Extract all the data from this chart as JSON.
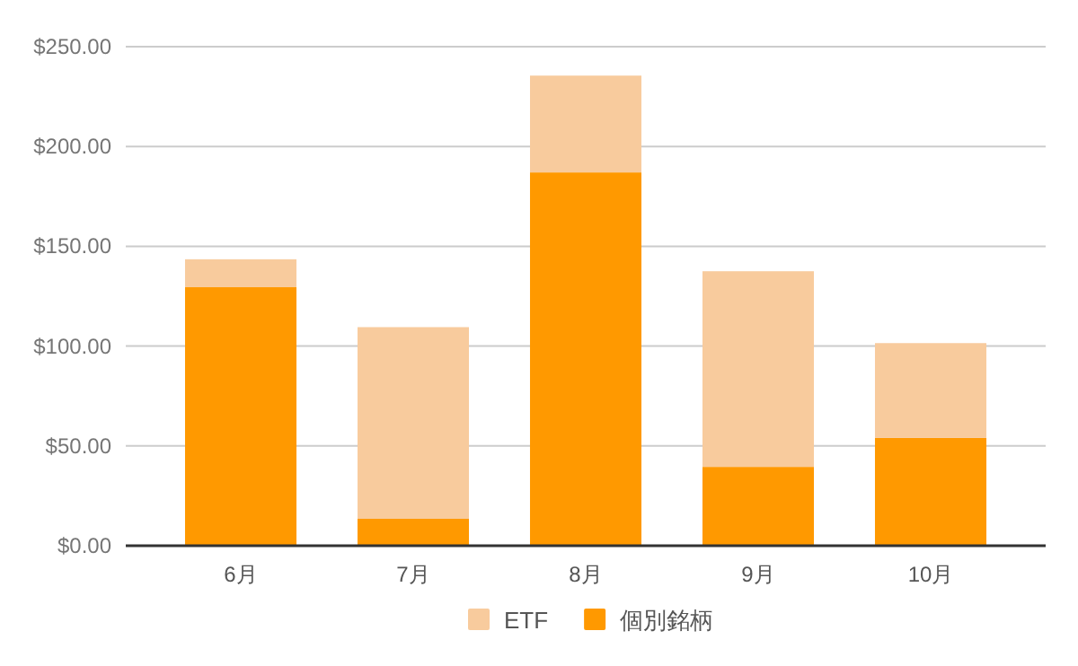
{
  "chart_data": {
    "type": "bar",
    "stacked": true,
    "categories": [
      "6月",
      "7月",
      "8月",
      "9月",
      "10月"
    ],
    "series": [
      {
        "name": "個別銘柄",
        "color": "#ff9900",
        "values": [
          129.5,
          13.5,
          187,
          39.5,
          54
        ]
      },
      {
        "name": "ETF",
        "color": "#f8cb9d",
        "values": [
          14,
          96,
          48.5,
          98,
          47.5
        ]
      }
    ],
    "ylim": [
      0,
      250
    ],
    "yticks": [
      {
        "value": 0,
        "label": "$0.00"
      },
      {
        "value": 50,
        "label": "$50.00"
      },
      {
        "value": 100,
        "label": "$100.00"
      },
      {
        "value": 150,
        "label": "$150.00"
      },
      {
        "value": 200,
        "label": "$200.00"
      },
      {
        "value": 250,
        "label": "$250.00"
      }
    ],
    "grid": "y",
    "legend": "bottom"
  }
}
